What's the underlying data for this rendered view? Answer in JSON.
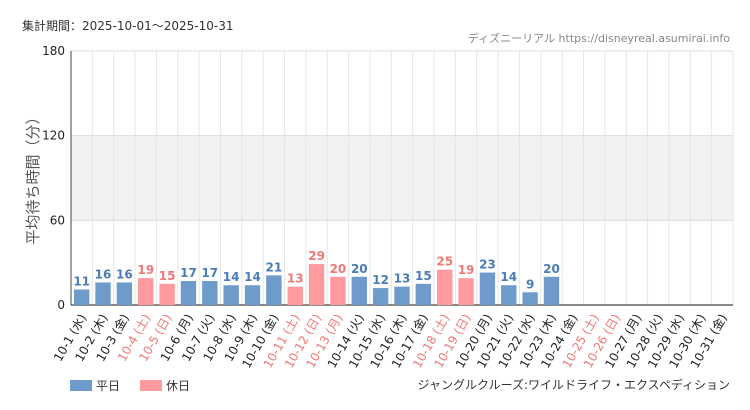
{
  "header": {
    "period": "集計期間：2025-10-01～2025-10-31",
    "credit": "ディズニーリアル https://disneyreal.asumirai.info"
  },
  "footer": {
    "attraction": "ジャングルクルーズ:ワイルドライフ・エクスペディション"
  },
  "colors": {
    "weekday": "#6f9bcb",
    "holiday": "#ff9a9e",
    "weekday_text": "#4a7cb5",
    "holiday_text": "#f07878"
  },
  "chart_data": {
    "type": "bar",
    "ylabel": "平均待ち時間（分）",
    "ylim": [
      0,
      180
    ],
    "yticks": [
      0,
      60,
      120,
      180
    ],
    "grid": true,
    "legend_position": "bottom-left",
    "legend": [
      {
        "key": "weekday",
        "label": "平日"
      },
      {
        "key": "holiday",
        "label": "休日"
      }
    ],
    "categories": [
      "10-1 (水)",
      "10-2 (木)",
      "10-3 (金)",
      "10-4 (土)",
      "10-5 (日)",
      "10-6 (月)",
      "10-7 (火)",
      "10-8 (水)",
      "10-9 (木)",
      "10-10 (金)",
      "10-11 (土)",
      "10-12 (日)",
      "10-13 (月)",
      "10-14 (火)",
      "10-15 (水)",
      "10-16 (木)",
      "10-17 (金)",
      "10-18 (土)",
      "10-19 (日)",
      "10-20 (月)",
      "10-21 (火)",
      "10-22 (水)",
      "10-23 (木)",
      "10-24 (金)",
      "10-25 (土)",
      "10-26 (日)",
      "10-27 (月)",
      "10-28 (火)",
      "10-29 (水)",
      "10-30 (木)",
      "10-31 (金)"
    ],
    "day_type": [
      "weekday",
      "weekday",
      "weekday",
      "holiday",
      "holiday",
      "weekday",
      "weekday",
      "weekday",
      "weekday",
      "weekday",
      "holiday",
      "holiday",
      "holiday",
      "weekday",
      "weekday",
      "weekday",
      "weekday",
      "holiday",
      "holiday",
      "weekday",
      "weekday",
      "weekday",
      "weekday",
      "weekday",
      "holiday",
      "holiday",
      "weekday",
      "weekday",
      "weekday",
      "weekday",
      "weekday"
    ],
    "values": [
      11,
      16,
      16,
      19,
      15,
      17,
      17,
      14,
      14,
      21,
      13,
      29,
      20,
      20,
      12,
      13,
      15,
      25,
      19,
      23,
      14,
      9,
      20,
      null,
      null,
      null,
      null,
      null,
      null,
      null,
      null
    ]
  }
}
